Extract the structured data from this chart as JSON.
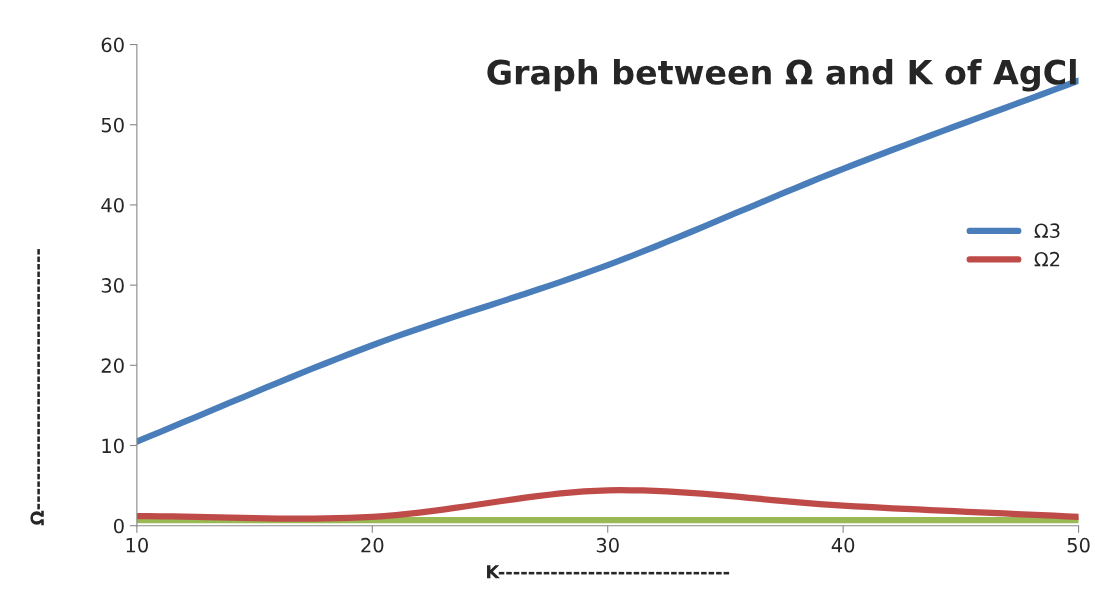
{
  "chart_data": {
    "type": "line",
    "title": "Graph between Ω and K of AgCl",
    "xlabel": "K-------------------------------",
    "ylabel": "Ω-----------------------------------",
    "x": [
      10,
      20,
      30,
      40,
      50
    ],
    "series": [
      {
        "name": "Ω3",
        "color": "#4a7ebb",
        "values": [
          10.5,
          22.5,
          32.5,
          44.5,
          55.5
        ]
      },
      {
        "name": "Ω2",
        "color": "#be4b48",
        "values": [
          1.2,
          1.1,
          4.4,
          2.5,
          1.1
        ]
      },
      {
        "color": "#98b954",
        "values": [
          0.7,
          0.7,
          0.7,
          0.7,
          0.7
        ]
      }
    ],
    "xlim": [
      10,
      50
    ],
    "xticks": [
      10,
      20,
      30,
      40,
      50
    ],
    "ylim": [
      0,
      60
    ],
    "yticks": [
      0,
      10,
      20,
      30,
      40,
      50,
      60
    ],
    "grid": false,
    "legend": "right",
    "marker": "none",
    "line_style": "solid"
  }
}
